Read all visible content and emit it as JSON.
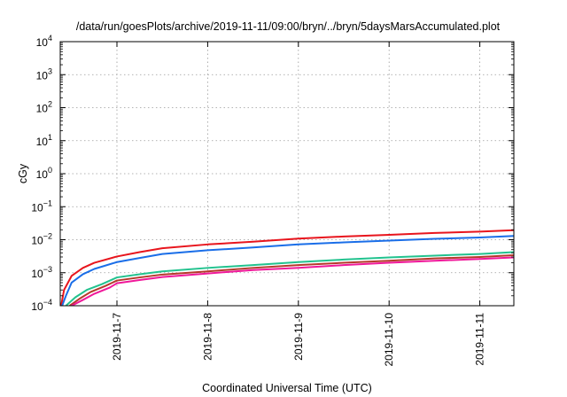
{
  "chart_data": {
    "type": "line",
    "title": "/data/run/goesPlots/archive/2019-11-11/09:00/bryn/../bryn/5daysMarsAccumulated.plot",
    "xlabel": "Coordinated Universal Time (UTC)",
    "ylabel": "cGy",
    "yscale": "log",
    "ylim_exponents": [
      -4,
      4
    ],
    "y_tick_exponents": [
      -4,
      -3,
      -2,
      -1,
      0,
      1,
      2,
      3,
      4
    ],
    "xlim": [
      "2019-11-06T09:00",
      "2019-11-11T09:00"
    ],
    "x_ticks": [
      {
        "value": "2019-11-07T00:00",
        "label": "2019-11-7"
      },
      {
        "value": "2019-11-08T00:00",
        "label": "2019-11-8"
      },
      {
        "value": "2019-11-09T00:00",
        "label": "2019-11-9"
      },
      {
        "value": "2019-11-10T00:00",
        "label": "2019-11-10"
      },
      {
        "value": "2019-11-11T00:00",
        "label": "2019-11-11"
      }
    ],
    "grid": true,
    "series": [
      {
        "color": "#e8151d",
        "points": [
          [
            "2019-11-06T09:15",
            0.0001
          ],
          [
            "2019-11-06T10:00",
            0.0003
          ],
          [
            "2019-11-06T12:00",
            0.0008
          ],
          [
            "2019-11-06T15:00",
            0.0014
          ],
          [
            "2019-11-06T18:00",
            0.002
          ],
          [
            "2019-11-07T00:00",
            0.0031
          ],
          [
            "2019-11-07T06:00",
            0.0042
          ],
          [
            "2019-11-07T12:00",
            0.0055
          ],
          [
            "2019-11-08T00:00",
            0.0072
          ],
          [
            "2019-11-08T12:00",
            0.0087
          ],
          [
            "2019-11-09T00:00",
            0.0108
          ],
          [
            "2019-11-09T12:00",
            0.0125
          ],
          [
            "2019-11-10T00:00",
            0.014
          ],
          [
            "2019-11-10T12:00",
            0.016
          ],
          [
            "2019-11-11T00:00",
            0.0176
          ],
          [
            "2019-11-11T09:00",
            0.0195
          ]
        ]
      },
      {
        "color": "#1a6ee8",
        "points": [
          [
            "2019-11-06T09:30",
            0.0001
          ],
          [
            "2019-11-06T10:30",
            0.0002
          ],
          [
            "2019-11-06T12:00",
            0.0005
          ],
          [
            "2019-11-06T15:00",
            0.0009
          ],
          [
            "2019-11-06T18:00",
            0.0013
          ],
          [
            "2019-11-07T00:00",
            0.0021
          ],
          [
            "2019-11-07T06:00",
            0.0028
          ],
          [
            "2019-11-07T12:00",
            0.0037
          ],
          [
            "2019-11-08T00:00",
            0.0048
          ],
          [
            "2019-11-08T12:00",
            0.0058
          ],
          [
            "2019-11-09T00:00",
            0.0072
          ],
          [
            "2019-11-09T12:00",
            0.0083
          ],
          [
            "2019-11-10T00:00",
            0.0094
          ],
          [
            "2019-11-10T12:00",
            0.0106
          ],
          [
            "2019-11-11T00:00",
            0.0117
          ],
          [
            "2019-11-11T09:00",
            0.013
          ]
        ]
      },
      {
        "color": "#22c28e",
        "points": [
          [
            "2019-11-06T10:30",
            0.0001
          ],
          [
            "2019-11-06T13:00",
            0.00018
          ],
          [
            "2019-11-06T16:00",
            0.0003
          ],
          [
            "2019-11-06T20:00",
            0.00045
          ],
          [
            "2019-11-07T00:00",
            0.00072
          ],
          [
            "2019-11-07T06:00",
            0.0009
          ],
          [
            "2019-11-07T12:00",
            0.0011
          ],
          [
            "2019-11-08T00:00",
            0.0014
          ],
          [
            "2019-11-08T12:00",
            0.0017
          ],
          [
            "2019-11-09T00:00",
            0.0021
          ],
          [
            "2019-11-09T12:00",
            0.0025
          ],
          [
            "2019-11-10T00:00",
            0.0029
          ],
          [
            "2019-11-10T12:00",
            0.0033
          ],
          [
            "2019-11-11T00:00",
            0.0037
          ],
          [
            "2019-11-11T09:00",
            0.0042
          ]
        ]
      },
      {
        "color": "#b5392a",
        "points": [
          [
            "2019-11-06T11:30",
            0.0001
          ],
          [
            "2019-11-06T14:00",
            0.00016
          ],
          [
            "2019-11-06T17:00",
            0.00026
          ],
          [
            "2019-11-06T21:00",
            0.0004
          ],
          [
            "2019-11-07T00:00",
            0.00058
          ],
          [
            "2019-11-07T06:00",
            0.00072
          ],
          [
            "2019-11-07T12:00",
            0.00088
          ],
          [
            "2019-11-08T00:00",
            0.0011
          ],
          [
            "2019-11-08T12:00",
            0.0014
          ],
          [
            "2019-11-09T00:00",
            0.0017
          ],
          [
            "2019-11-09T12:00",
            0.002
          ],
          [
            "2019-11-10T00:00",
            0.0023
          ],
          [
            "2019-11-10T12:00",
            0.0027
          ],
          [
            "2019-11-11T00:00",
            0.003
          ],
          [
            "2019-11-11T09:00",
            0.0034
          ]
        ]
      },
      {
        "color": "#f0189a",
        "points": [
          [
            "2019-11-06T12:00",
            0.0001
          ],
          [
            "2019-11-06T15:00",
            0.00015
          ],
          [
            "2019-11-06T18:00",
            0.00023
          ],
          [
            "2019-11-06T22:00",
            0.00035
          ],
          [
            "2019-11-07T00:00",
            0.00048
          ],
          [
            "2019-11-07T06:00",
            0.0006
          ],
          [
            "2019-11-07T12:00",
            0.00074
          ],
          [
            "2019-11-08T00:00",
            0.00095
          ],
          [
            "2019-11-08T12:00",
            0.0012
          ],
          [
            "2019-11-09T00:00",
            0.0014
          ],
          [
            "2019-11-09T12:00",
            0.0017
          ],
          [
            "2019-11-10T00:00",
            0.002
          ],
          [
            "2019-11-10T12:00",
            0.0023
          ],
          [
            "2019-11-11T00:00",
            0.0026
          ],
          [
            "2019-11-11T09:00",
            0.0029
          ]
        ]
      }
    ]
  }
}
